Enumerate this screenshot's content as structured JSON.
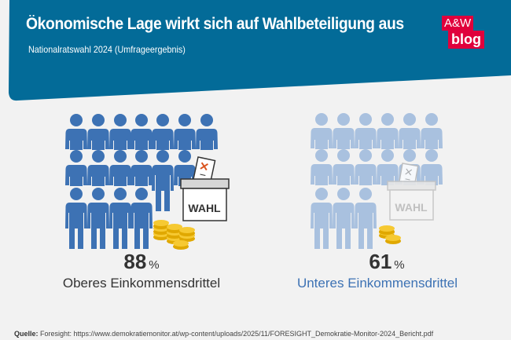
{
  "header": {
    "title": "Ökonomische Lage wirkt sich auf Wahlbeteiligung aus",
    "subtitle": "Nationalratswahl 2024 (Umfrageergebnis)",
    "logo_line1": "A&W",
    "logo_line2": "blog",
    "background_color": "#036b98",
    "logo_color": "#e0003c"
  },
  "groups": [
    {
      "value": "88",
      "unit": "%",
      "label": "Oberes Einkommensdrittel",
      "label_color": "#333333",
      "people_color": "#3d72b4",
      "ballot_text": "WAHL"
    },
    {
      "value": "61",
      "unit": "%",
      "label": "Unteres Einkommensdrittel",
      "label_color": "#3d72b4",
      "people_color": "#a9c1df",
      "ballot_text": "WAHL"
    }
  ],
  "source": {
    "label": "Quelle:",
    "text": "Foresight: https://www.demokratiemonitor.at/wp-content/uploads/2025/11/FORESIGHT_Demokratie-Monitor-2024_Bericht.pdf"
  }
}
